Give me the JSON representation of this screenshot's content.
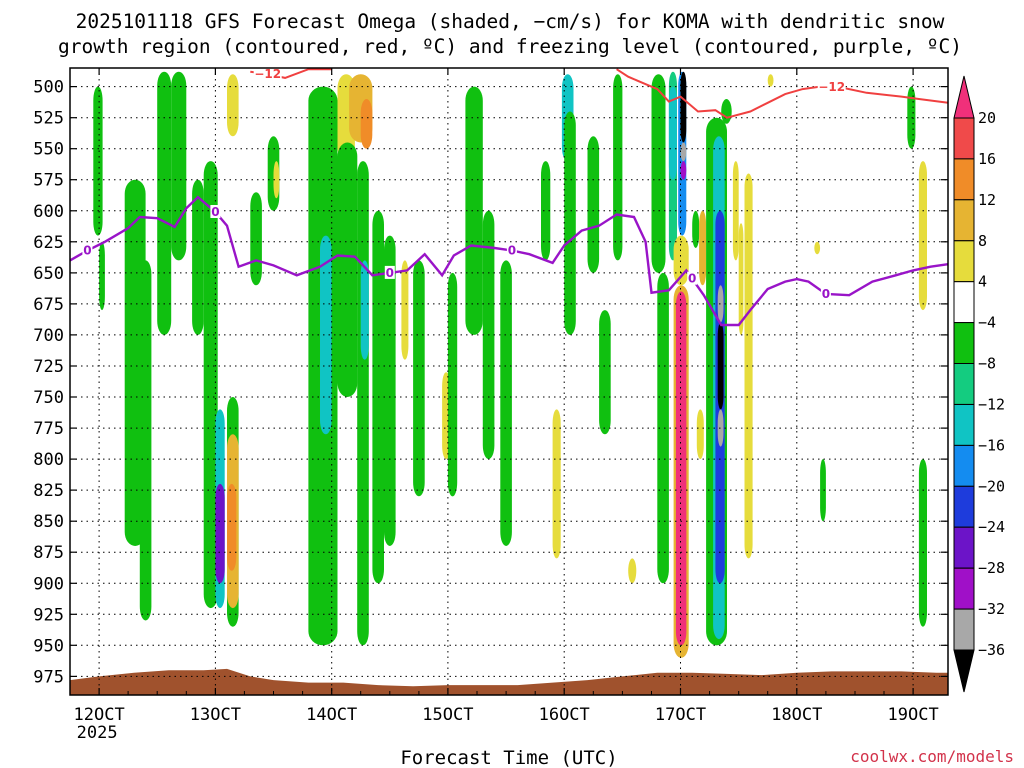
{
  "chart_data": {
    "type": "time-height cross section (omega shaded, temperature contoured)",
    "title_line1": "2025101118 GFS Forecast Omega (shaded, −cm/s) for KOMA with dendritic snow",
    "title_line2": "growth region (contoured, red, ºC) and freezing level (contoured, purple, ºC)",
    "xlabel": "Forecast Time (UTC)",
    "credit": "coolwx.com/models",
    "x_ticks": [
      {
        "label": "12OCT",
        "sub": "2025",
        "day": 12
      },
      {
        "label": "13OCT",
        "day": 13
      },
      {
        "label": "14OCT",
        "day": 14
      },
      {
        "label": "15OCT",
        "day": 15
      },
      {
        "label": "16OCT",
        "day": 16
      },
      {
        "label": "17OCT",
        "day": 17
      },
      {
        "label": "18OCT",
        "day": 18
      },
      {
        "label": "19OCT",
        "day": 19
      }
    ],
    "xlim_days": [
      11.75,
      19.3
    ],
    "y_ticks": [
      "500",
      "525",
      "550",
      "575",
      "600",
      "625",
      "650",
      "675",
      "700",
      "725",
      "750",
      "775",
      "800",
      "825",
      "850",
      "875",
      "900",
      "925",
      "950",
      "975"
    ],
    "ylim_hpa": [
      485,
      990
    ],
    "colorbar": {
      "labels": [
        "20",
        "16",
        "12",
        "8",
        "4",
        "−4",
        "−8",
        "−12",
        "−16",
        "−20",
        "−24",
        "−28",
        "−32",
        "−36"
      ],
      "colors": [
        "#f0307a",
        "#f04a4a",
        "#f08c28",
        "#e6b432",
        "#e6dc3c",
        "#ffffff",
        "#10c010",
        "#14cc80",
        "#10c4c4",
        "#148cf0",
        "#1e3cdc",
        "#6c14c8",
        "#a010c8",
        "#a8a8a8",
        "#000000"
      ]
    },
    "freezing_level": {
      "label": "0",
      "color": "#9914c8",
      "points": [
        [
          11.75,
          640
        ],
        [
          11.9,
          632
        ],
        [
          12.05,
          625
        ],
        [
          12.25,
          614
        ],
        [
          12.35,
          605
        ],
        [
          12.5,
          606
        ],
        [
          12.65,
          613
        ],
        [
          12.75,
          598
        ],
        [
          12.85,
          589
        ],
        [
          13.0,
          601
        ],
        [
          13.1,
          612
        ],
        [
          13.2,
          645
        ],
        [
          13.35,
          640
        ],
        [
          13.5,
          644
        ],
        [
          13.7,
          652
        ],
        [
          13.9,
          645
        ],
        [
          14.05,
          636
        ],
        [
          14.2,
          637
        ],
        [
          14.35,
          652
        ],
        [
          14.5,
          650
        ],
        [
          14.65,
          648
        ],
        [
          14.8,
          635
        ],
        [
          14.95,
          652
        ],
        [
          15.05,
          636
        ],
        [
          15.2,
          628
        ],
        [
          15.4,
          630
        ],
        [
          15.55,
          632
        ],
        [
          15.7,
          635
        ],
        [
          15.9,
          642
        ],
        [
          16.0,
          628
        ],
        [
          16.15,
          616
        ],
        [
          16.3,
          612
        ],
        [
          16.45,
          603
        ],
        [
          16.6,
          605
        ],
        [
          16.7,
          625
        ],
        [
          16.75,
          666
        ],
        [
          16.9,
          664
        ],
        [
          17.05,
          648
        ],
        [
          17.2,
          668
        ],
        [
          17.35,
          692
        ],
        [
          17.5,
          692
        ],
        [
          17.6,
          680
        ],
        [
          17.75,
          663
        ],
        [
          17.9,
          657
        ],
        [
          18.0,
          655
        ],
        [
          18.1,
          657
        ],
        [
          18.25,
          667
        ],
        [
          18.45,
          668
        ],
        [
          18.65,
          657
        ],
        [
          18.85,
          652
        ],
        [
          19.0,
          648
        ],
        [
          19.15,
          645
        ],
        [
          19.3,
          643
        ]
      ],
      "label_days": [
        11.9,
        13.0,
        14.5,
        15.55,
        17.1,
        18.25
      ]
    },
    "dgz_minus12": {
      "label": "−12",
      "color": "#f04040",
      "points": [
        [
          16.45,
          486
        ],
        [
          16.55,
          492
        ],
        [
          16.65,
          496
        ],
        [
          16.8,
          502
        ],
        [
          16.9,
          512
        ],
        [
          17.0,
          508
        ],
        [
          17.15,
          520
        ],
        [
          17.3,
          519
        ],
        [
          17.4,
          525
        ],
        [
          17.6,
          520
        ],
        [
          17.75,
          513
        ],
        [
          17.9,
          506
        ],
        [
          18.05,
          502
        ],
        [
          18.2,
          500
        ],
        [
          18.4,
          501
        ],
        [
          18.6,
          505
        ],
        [
          18.9,
          508
        ],
        [
          19.05,
          510
        ],
        [
          19.3,
          513
        ]
      ],
      "points_top": [
        [
          13.3,
          488
        ],
        [
          13.45,
          490
        ],
        [
          13.6,
          493
        ],
        [
          13.8,
          486
        ],
        [
          14.0,
          486
        ]
      ],
      "label_days": [
        13.45,
        18.3
      ]
    },
    "omega_patches": [
      {
        "d0": 11.95,
        "d1": 12.03,
        "p0": 500,
        "p1": 620,
        "v": -6
      },
      {
        "d0": 12.0,
        "d1": 12.05,
        "p0": 625,
        "p1": 680,
        "v": -6
      },
      {
        "d0": 12.22,
        "d1": 12.4,
        "p0": 575,
        "p1": 870,
        "v": -6
      },
      {
        "d0": 12.35,
        "d1": 12.45,
        "p0": 640,
        "p1": 930,
        "v": -6
      },
      {
        "d0": 12.5,
        "d1": 12.62,
        "p0": 488,
        "p1": 700,
        "v": -6
      },
      {
        "d0": 12.62,
        "d1": 12.75,
        "p0": 488,
        "p1": 640,
        "v": -6
      },
      {
        "d0": 12.8,
        "d1": 12.9,
        "p0": 575,
        "p1": 700,
        "v": -6
      },
      {
        "d0": 12.9,
        "d1": 13.02,
        "p0": 560,
        "p1": 920,
        "v": -6
      },
      {
        "d0": 13.0,
        "d1": 13.08,
        "p0": 760,
        "p1": 920,
        "v": -14
      },
      {
        "d0": 13.0,
        "d1": 13.08,
        "p0": 820,
        "p1": 900,
        "v": -26
      },
      {
        "d0": 13.1,
        "d1": 13.2,
        "p0": 750,
        "p1": 935,
        "v": -6
      },
      {
        "d0": 13.1,
        "d1": 13.2,
        "p0": 780,
        "p1": 920,
        "v": 10
      },
      {
        "d0": 13.1,
        "d1": 13.18,
        "p0": 820,
        "p1": 890,
        "v": 14
      },
      {
        "d0": 13.1,
        "d1": 13.2,
        "p0": 490,
        "p1": 540,
        "v": 6
      },
      {
        "d0": 13.3,
        "d1": 13.4,
        "p0": 585,
        "p1": 660,
        "v": -6
      },
      {
        "d0": 13.45,
        "d1": 13.55,
        "p0": 540,
        "p1": 600,
        "v": -6
      },
      {
        "d0": 13.5,
        "d1": 13.55,
        "p0": 560,
        "p1": 590,
        "v": 6
      },
      {
        "d0": 13.8,
        "d1": 14.05,
        "p0": 500,
        "p1": 950,
        "v": -6
      },
      {
        "d0": 13.9,
        "d1": 14.0,
        "p0": 620,
        "p1": 780,
        "v": -14
      },
      {
        "d0": 14.05,
        "d1": 14.2,
        "p0": 490,
        "p1": 560,
        "v": 6
      },
      {
        "d0": 14.05,
        "d1": 14.22,
        "p0": 545,
        "p1": 750,
        "v": -6
      },
      {
        "d0": 14.15,
        "d1": 14.35,
        "p0": 490,
        "p1": 545,
        "v": 10
      },
      {
        "d0": 14.25,
        "d1": 14.35,
        "p0": 510,
        "p1": 550,
        "v": 14
      },
      {
        "d0": 14.22,
        "d1": 14.32,
        "p0": 560,
        "p1": 950,
        "v": -6
      },
      {
        "d0": 14.25,
        "d1": 14.32,
        "p0": 640,
        "p1": 720,
        "v": -14
      },
      {
        "d0": 14.35,
        "d1": 14.45,
        "p0": 600,
        "p1": 900,
        "v": -6
      },
      {
        "d0": 14.45,
        "d1": 14.55,
        "p0": 620,
        "p1": 870,
        "v": -6
      },
      {
        "d0": 14.6,
        "d1": 14.66,
        "p0": 640,
        "p1": 720,
        "v": 6
      },
      {
        "d0": 14.7,
        "d1": 14.8,
        "p0": 640,
        "p1": 830,
        "v": -6
      },
      {
        "d0": 14.95,
        "d1": 15.02,
        "p0": 730,
        "p1": 800,
        "v": 6
      },
      {
        "d0": 15.0,
        "d1": 15.08,
        "p0": 650,
        "p1": 830,
        "v": -6
      },
      {
        "d0": 15.15,
        "d1": 15.3,
        "p0": 500,
        "p1": 700,
        "v": -6
      },
      {
        "d0": 15.3,
        "d1": 15.4,
        "p0": 600,
        "p1": 800,
        "v": -6
      },
      {
        "d0": 15.45,
        "d1": 15.55,
        "p0": 640,
        "p1": 870,
        "v": -6
      },
      {
        "d0": 15.8,
        "d1": 15.88,
        "p0": 560,
        "p1": 640,
        "v": -6
      },
      {
        "d0": 15.9,
        "d1": 15.97,
        "p0": 760,
        "p1": 880,
        "v": 6
      },
      {
        "d0": 15.98,
        "d1": 16.08,
        "p0": 490,
        "p1": 560,
        "v": -14
      },
      {
        "d0": 16.0,
        "d1": 16.1,
        "p0": 520,
        "p1": 700,
        "v": -6
      },
      {
        "d0": 16.2,
        "d1": 16.3,
        "p0": 540,
        "p1": 650,
        "v": -6
      },
      {
        "d0": 16.3,
        "d1": 16.4,
        "p0": 680,
        "p1": 780,
        "v": -6
      },
      {
        "d0": 16.42,
        "d1": 16.5,
        "p0": 490,
        "p1": 640,
        "v": -6
      },
      {
        "d0": 16.55,
        "d1": 16.62,
        "p0": 880,
        "p1": 900,
        "v": 6
      },
      {
        "d0": 16.75,
        "d1": 16.87,
        "p0": 490,
        "p1": 650,
        "v": -6
      },
      {
        "d0": 16.8,
        "d1": 16.9,
        "p0": 650,
        "p1": 900,
        "v": -6
      },
      {
        "d0": 16.9,
        "d1": 16.97,
        "p0": 488,
        "p1": 640,
        "v": -10
      },
      {
        "d0": 16.9,
        "d1": 16.97,
        "p0": 500,
        "p1": 575,
        "v": -14
      },
      {
        "d0": 16.98,
        "d1": 17.05,
        "p0": 488,
        "p1": 620,
        "v": -18
      },
      {
        "d0": 17.0,
        "d1": 17.05,
        "p0": 488,
        "p1": 545,
        "v": -38
      },
      {
        "d0": 17.0,
        "d1": 17.05,
        "p0": 545,
        "p1": 560,
        "v": -34
      },
      {
        "d0": 17.0,
        "d1": 17.05,
        "p0": 560,
        "p1": 575,
        "v": -30
      },
      {
        "d0": 16.94,
        "d1": 17.07,
        "p0": 620,
        "p1": 660,
        "v": 6
      },
      {
        "d0": 16.94,
        "d1": 17.07,
        "p0": 660,
        "p1": 960,
        "v": 10
      },
      {
        "d0": 16.96,
        "d1": 17.05,
        "p0": 665,
        "p1": 950,
        "v": 22
      },
      {
        "d0": 17.1,
        "d1": 17.16,
        "p0": 600,
        "p1": 630,
        "v": -6
      },
      {
        "d0": 17.14,
        "d1": 17.2,
        "p0": 760,
        "p1": 800,
        "v": 6
      },
      {
        "d0": 17.16,
        "d1": 17.22,
        "p0": 600,
        "p1": 660,
        "v": 10
      },
      {
        "d0": 17.22,
        "d1": 17.4,
        "p0": 525,
        "p1": 950,
        "v": -6
      },
      {
        "d0": 17.28,
        "d1": 17.38,
        "p0": 540,
        "p1": 945,
        "v": -14
      },
      {
        "d0": 17.3,
        "d1": 17.38,
        "p0": 600,
        "p1": 900,
        "v": -22
      },
      {
        "d0": 17.32,
        "d1": 17.37,
        "p0": 690,
        "p1": 760,
        "v": -38
      },
      {
        "d0": 17.32,
        "d1": 17.37,
        "p0": 660,
        "p1": 690,
        "v": -34
      },
      {
        "d0": 17.32,
        "d1": 17.37,
        "p0": 760,
        "p1": 790,
        "v": -34
      },
      {
        "d0": 17.35,
        "d1": 17.44,
        "p0": 510,
        "p1": 530,
        "v": -6
      },
      {
        "d0": 17.45,
        "d1": 17.5,
        "p0": 560,
        "p1": 640,
        "v": 6
      },
      {
        "d0": 17.55,
        "d1": 17.62,
        "p0": 570,
        "p1": 880,
        "v": 6
      },
      {
        "d0": 17.5,
        "d1": 17.54,
        "p0": 610,
        "p1": 700,
        "v": 6
      },
      {
        "d0": 18.15,
        "d1": 18.2,
        "p0": 625,
        "p1": 635,
        "v": 6
      },
      {
        "d0": 18.2,
        "d1": 18.25,
        "p0": 800,
        "p1": 850,
        "v": -6
      },
      {
        "d0": 18.95,
        "d1": 19.02,
        "p0": 500,
        "p1": 550,
        "v": -6
      },
      {
        "d0": 19.05,
        "d1": 19.12,
        "p0": 560,
        "p1": 680,
        "v": 6
      },
      {
        "d0": 19.05,
        "d1": 19.12,
        "p0": 800,
        "p1": 935,
        "v": -6
      },
      {
        "d0": 17.75,
        "d1": 17.8,
        "p0": 490,
        "p1": 500,
        "v": 6
      }
    ],
    "terrain": {
      "color": "#a0522d",
      "points": [
        [
          11.75,
          978
        ],
        [
          12.0,
          975
        ],
        [
          12.3,
          972
        ],
        [
          12.6,
          970
        ],
        [
          12.9,
          970
        ],
        [
          13.1,
          969
        ],
        [
          13.3,
          975
        ],
        [
          13.5,
          978
        ],
        [
          13.8,
          980
        ],
        [
          14.1,
          980
        ],
        [
          14.4,
          982
        ],
        [
          14.7,
          983
        ],
        [
          15.0,
          982
        ],
        [
          15.3,
          982
        ],
        [
          15.6,
          982
        ],
        [
          15.9,
          980
        ],
        [
          16.2,
          978
        ],
        [
          16.5,
          975
        ],
        [
          16.8,
          972
        ],
        [
          17.1,
          972
        ],
        [
          17.4,
          973
        ],
        [
          17.7,
          974
        ],
        [
          18.0,
          972
        ],
        [
          18.3,
          971
        ],
        [
          18.6,
          971
        ],
        [
          18.9,
          971
        ],
        [
          19.2,
          972
        ],
        [
          19.3,
          972
        ]
      ]
    }
  }
}
